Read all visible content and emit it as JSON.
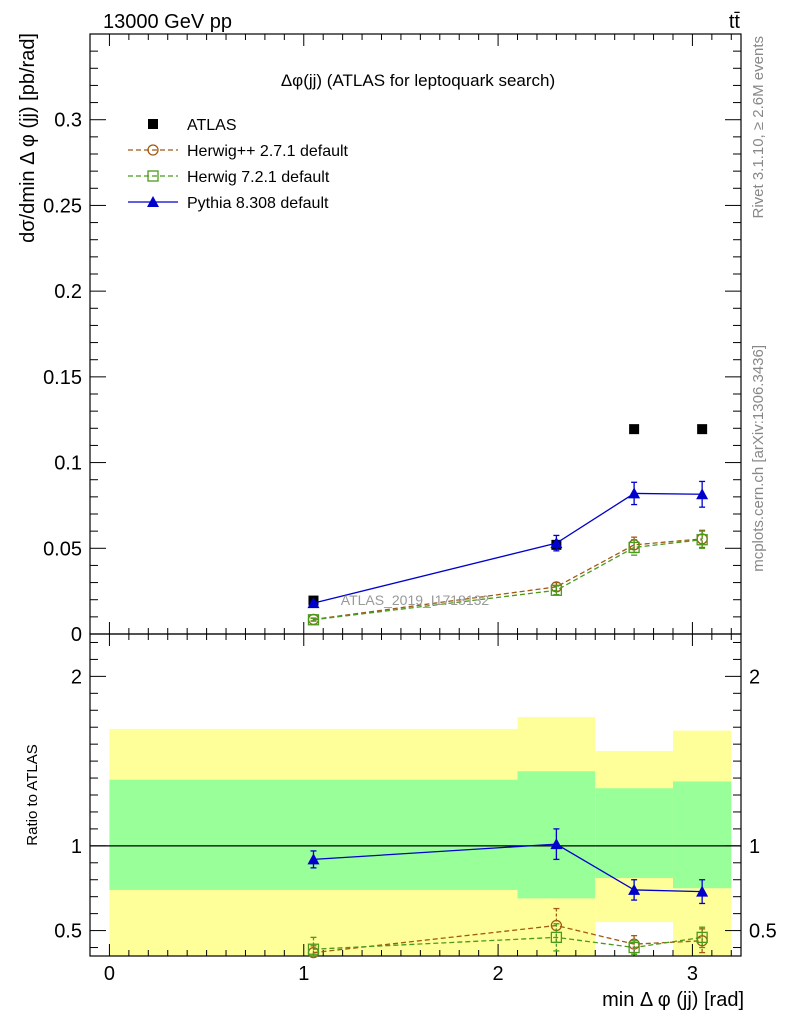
{
  "header": {
    "energy_label": "13000 GeV pp",
    "process_label": "tt̄"
  },
  "side_labels": {
    "rivet": "Rivet 3.1.10, ≥ 2.6M events",
    "mcplots": "mcplots.cern.ch [arXiv:1306.3436]"
  },
  "chart_data": [
    {
      "type": "scatter",
      "panel": "main",
      "title": "Δφ(jj) (ATLAS for leptoquark search)",
      "watermark": "ATLAS_2019_I1718132",
      "xlabel": "min Δ φ (jj) [rad]",
      "ylabel": "dσ/dmin Δ φ (jj) [pb/rad]",
      "xlim": [
        -0.1,
        3.25
      ],
      "ylim": [
        0,
        0.35
      ],
      "yticks": [
        0,
        0.05,
        0.1,
        0.15,
        0.2,
        0.25,
        0.3
      ],
      "yticklabels": [
        "0",
        "0.05",
        "0.1",
        "0.15",
        "0.2",
        "0.25",
        "0.3"
      ],
      "legend_position": "top-left",
      "x": [
        1.05,
        2.3,
        2.7,
        3.05
      ],
      "series": [
        {
          "name": "ATLAS",
          "color": "#000000",
          "marker": "filled-square",
          "line": "none",
          "values": [
            0.0195,
            0.052,
            0.1195,
            0.1195
          ],
          "errors": [
            0,
            0,
            0,
            0
          ]
        },
        {
          "name": "Herwig++ 2.7.1 default",
          "color": "#a05a14",
          "marker": "open-circle",
          "line": "dashed",
          "values": [
            0.0085,
            0.0275,
            0.052,
            0.0555
          ],
          "errors": [
            0.0008,
            0.0025,
            0.0045,
            0.005
          ]
        },
        {
          "name": "Herwig 7.2.1 default",
          "color": "#4a9a1c",
          "marker": "open-square",
          "line": "dashed",
          "values": [
            0.0083,
            0.0255,
            0.0505,
            0.055
          ],
          "errors": [
            0.0008,
            0.0025,
            0.0045,
            0.005
          ]
        },
        {
          "name": "Pythia 8.308 default",
          "color": "#0000cc",
          "marker": "filled-triangle",
          "line": "solid",
          "values": [
            0.018,
            0.053,
            0.082,
            0.0815
          ],
          "errors": [
            0.001,
            0.0045,
            0.0065,
            0.0075
          ]
        }
      ]
    },
    {
      "type": "scatter",
      "panel": "ratio",
      "xlabel": "min Δ φ (jj) [rad]",
      "ylabel": "Ratio to ATLAS",
      "xlim": [
        -0.1,
        3.25
      ],
      "ylim": [
        0.35,
        2.25
      ],
      "yticks": [
        0.5,
        1,
        2
      ],
      "yticklabels": [
        "0.5",
        "1",
        "2"
      ],
      "xticks": [
        0,
        1,
        2,
        3
      ],
      "xticklabels": [
        "0",
        "1",
        "2",
        "3"
      ],
      "reference_line": 1,
      "bands": [
        {
          "xlo": 0.0,
          "xhi": 2.1,
          "stat_lo": 0.74,
          "stat_hi": 1.39,
          "tot_lo": 0.35,
          "tot_hi": 1.69
        },
        {
          "xlo": 2.1,
          "xhi": 2.5,
          "stat_lo": 0.69,
          "stat_hi": 1.44,
          "tot_lo": 0.35,
          "tot_hi": 1.76
        },
        {
          "xlo": 2.5,
          "xhi": 2.9,
          "stat_lo": 0.81,
          "stat_hi": 1.34,
          "tot_lo": 0.55,
          "tot_hi": 1.56
        },
        {
          "xlo": 2.9,
          "xhi": 3.2,
          "stat_lo": 0.75,
          "stat_hi": 1.38,
          "tot_lo": 0.35,
          "tot_hi": 1.68
        }
      ],
      "x": [
        1.05,
        2.3,
        2.7,
        3.05
      ],
      "series": [
        {
          "name": "Herwig++ 2.7.1 default",
          "color": "#a05a14",
          "marker": "open-circle",
          "line": "dashed",
          "values": [
            0.37,
            0.53,
            0.42,
            0.44
          ],
          "errors": [
            0.04,
            0.1,
            0.05,
            0.07
          ]
        },
        {
          "name": "Herwig 7.2.1 default",
          "color": "#4a9a1c",
          "marker": "open-square",
          "line": "dashed",
          "values": [
            0.39,
            0.46,
            0.4,
            0.46
          ],
          "errors": [
            0.07,
            0.08,
            0.04,
            0.06
          ]
        },
        {
          "name": "Pythia 8.308 default",
          "color": "#0000cc",
          "marker": "filled-triangle",
          "line": "solid",
          "values": [
            0.92,
            1.01,
            0.74,
            0.73
          ],
          "errors": [
            0.05,
            0.09,
            0.06,
            0.07
          ]
        }
      ]
    }
  ]
}
